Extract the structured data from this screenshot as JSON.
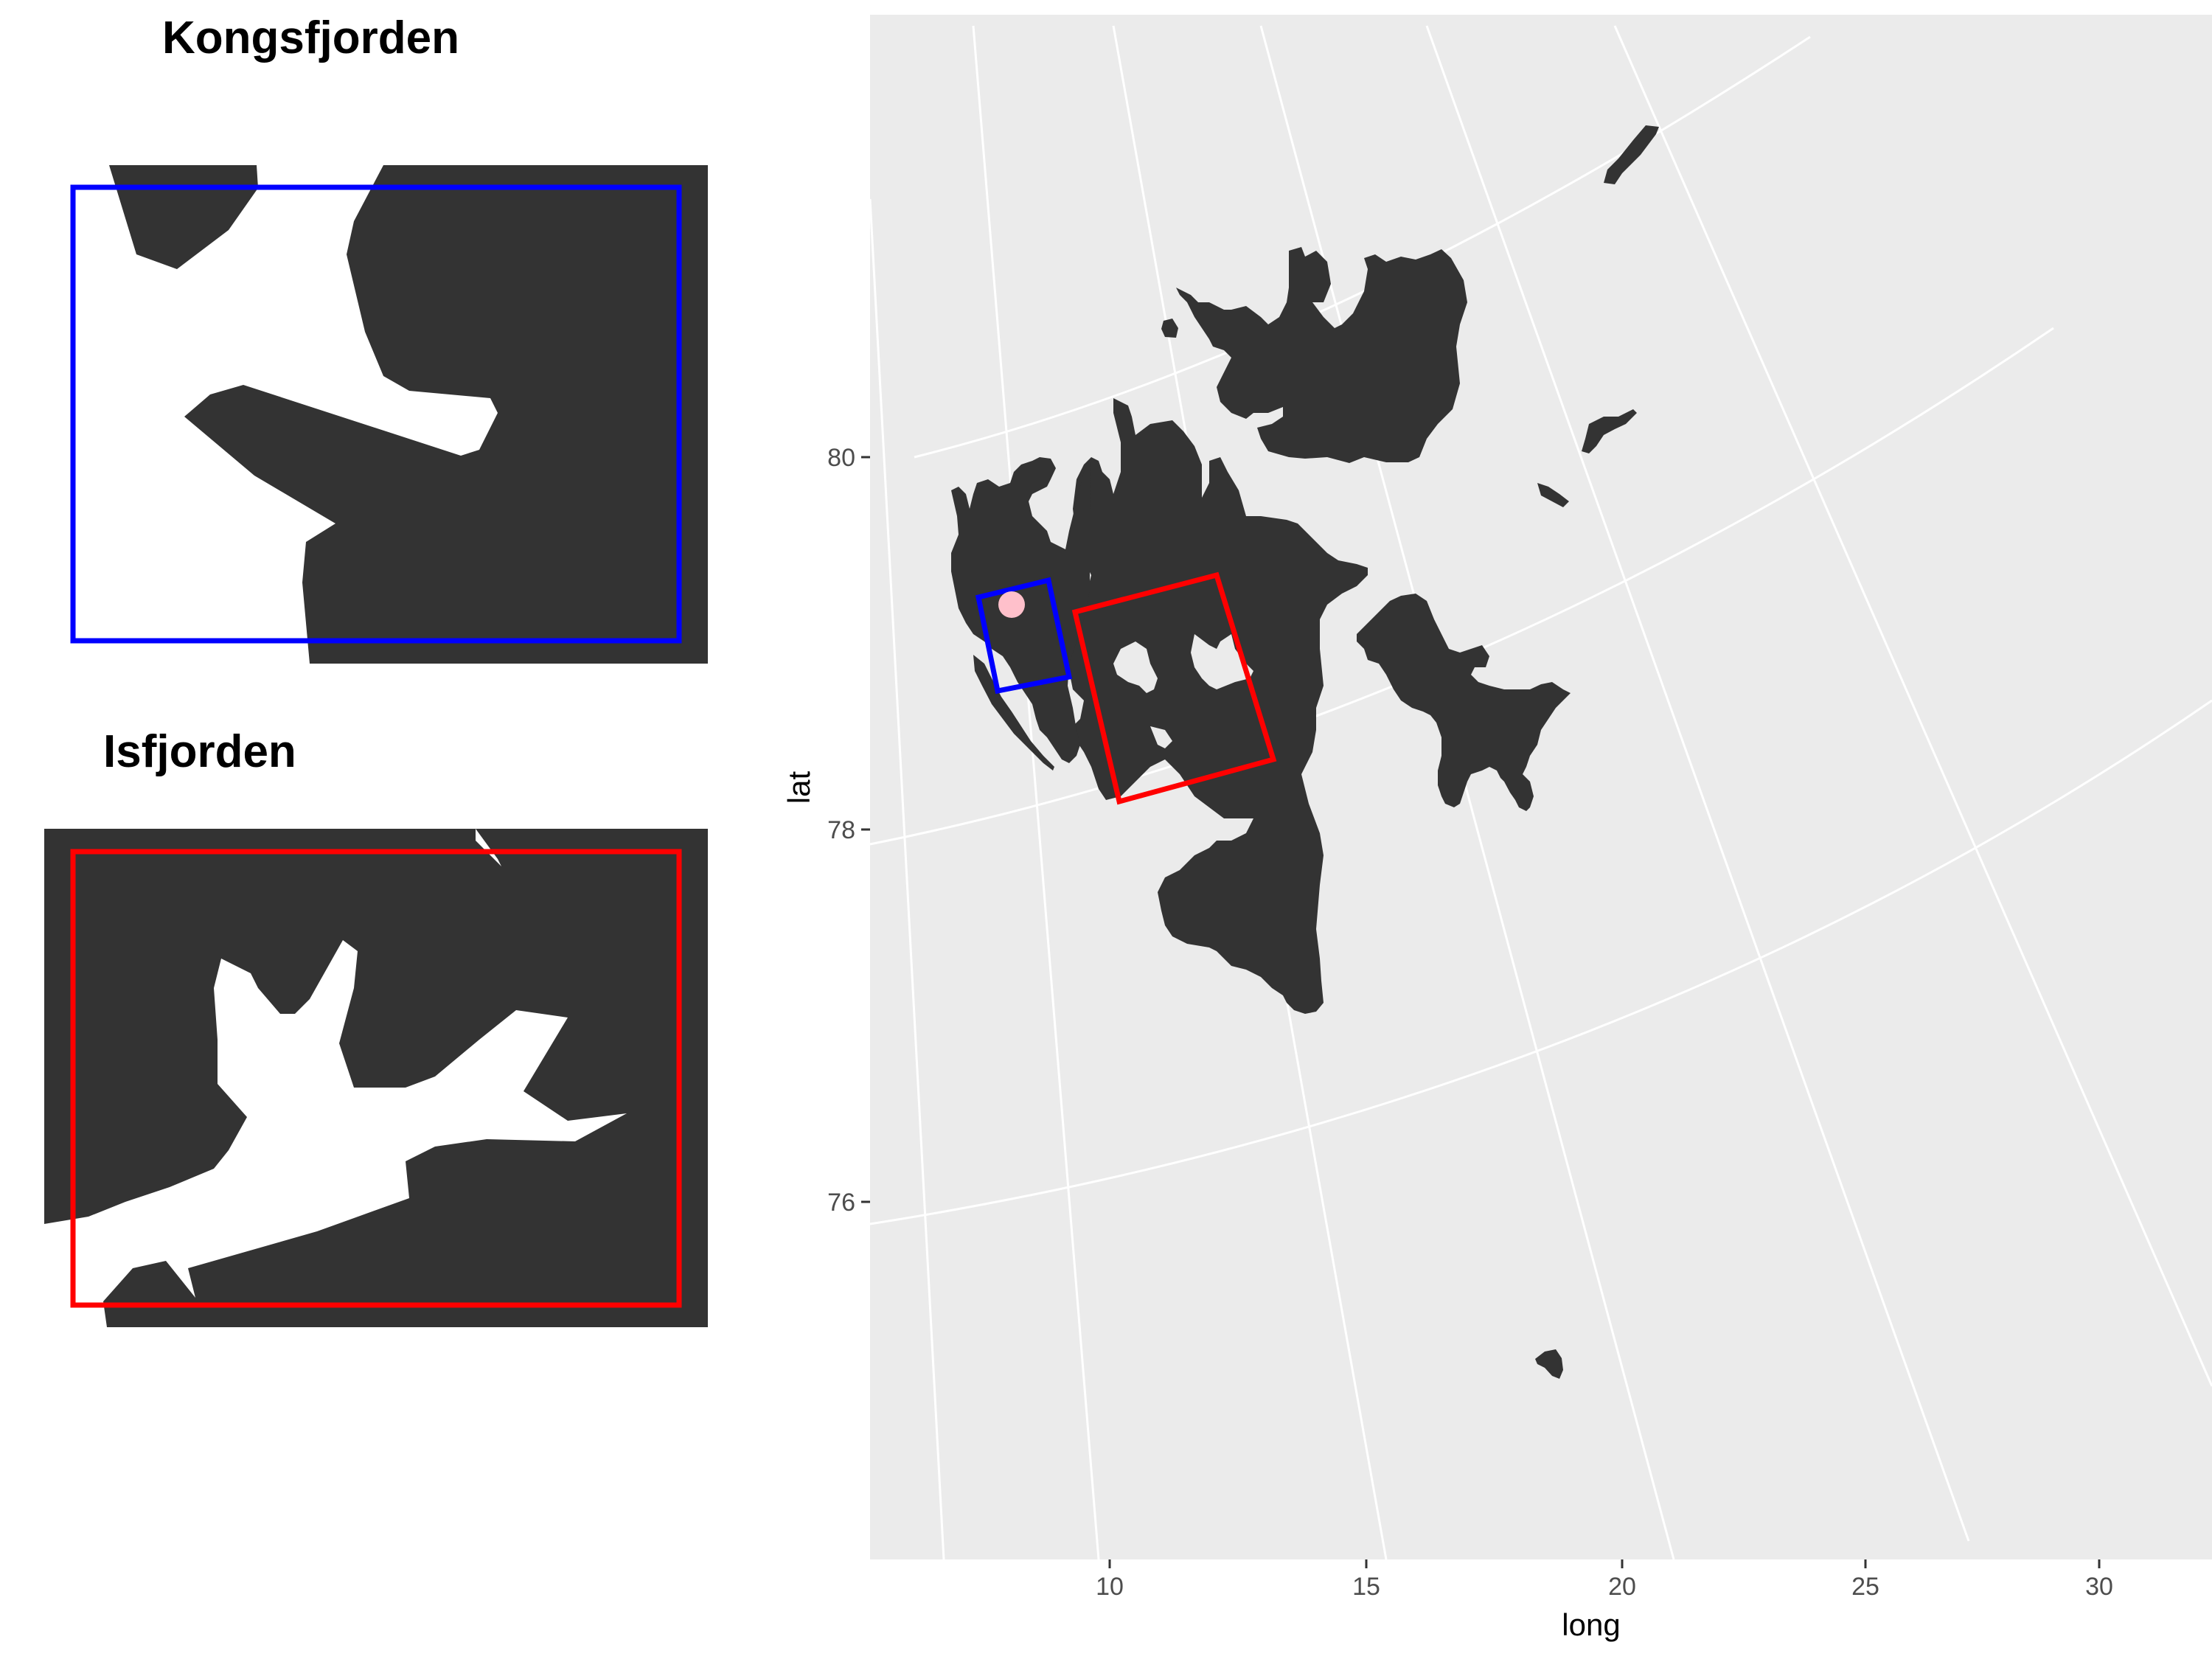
{
  "inset_kongsfjorden": {
    "title": "Kongsfjorden",
    "box_color": "#0000ff"
  },
  "inset_isfjorden": {
    "title": "Isfjorden",
    "box_color": "#ff0000"
  },
  "map": {
    "panel_background": "#ebebeb",
    "land_color": "#333333",
    "marker_color": "#ffc0cb",
    "x_axis_label": "long",
    "y_axis_label": "lat",
    "x_ticks": [
      "10",
      "15",
      "20",
      "25",
      "30"
    ],
    "y_ticks": [
      "80",
      "78",
      "76"
    ]
  }
}
